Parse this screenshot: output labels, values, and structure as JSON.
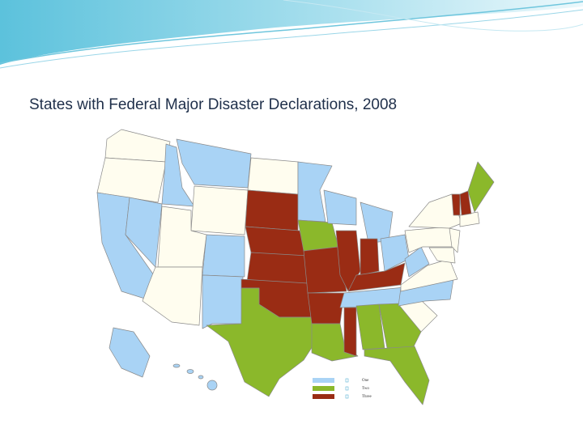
{
  "title": "States with Federal Major Disaster Declarations, 2008",
  "legend": {
    "items": [
      {
        "label": "One",
        "color": "#a9d3f5"
      },
      {
        "label": "Two",
        "color": "#8bb82b"
      },
      {
        "label": "Three",
        "color": "#9a2c14"
      }
    ]
  }
}
